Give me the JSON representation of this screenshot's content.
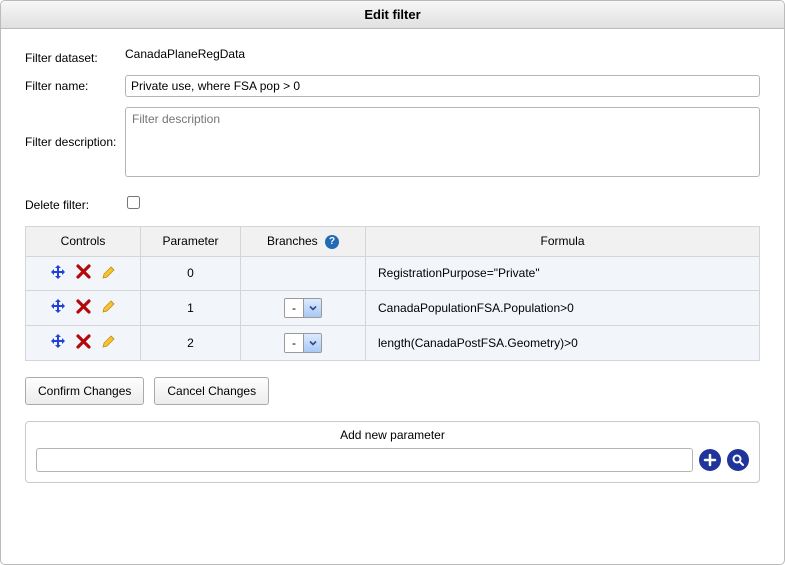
{
  "window": {
    "title": "Edit filter"
  },
  "labels": {
    "filter_dataset": "Filter dataset:",
    "filter_name": "Filter name:",
    "filter_description": "Filter description:",
    "delete_filter": "Delete filter:"
  },
  "values": {
    "filter_dataset": "CanadaPlaneRegData",
    "filter_name": "Private use, where FSA pop > 0",
    "filter_description_placeholder": "Filter description",
    "filter_description": "",
    "delete_filter_checked": false
  },
  "table": {
    "headers": {
      "controls": "Controls",
      "parameter": "Parameter",
      "branches": "Branches",
      "formula": "Formula"
    },
    "rows": [
      {
        "parameter": "0",
        "branches_value": "",
        "has_branch_select": false,
        "formula": "RegistrationPurpose=\"Private\""
      },
      {
        "parameter": "1",
        "branches_value": "-",
        "has_branch_select": true,
        "formula": "CanadaPopulationFSA.Population>0"
      },
      {
        "parameter": "2",
        "branches_value": "-",
        "has_branch_select": true,
        "formula": "length(CanadaPostFSA.Geometry)>0"
      }
    ]
  },
  "buttons": {
    "confirm": "Confirm Changes",
    "cancel": "Cancel Changes"
  },
  "add_parameter": {
    "title": "Add new parameter",
    "value": ""
  },
  "icons": {
    "help": "?",
    "move": "move-icon",
    "delete": "delete-icon",
    "edit": "edit-icon",
    "add": "add-icon",
    "search": "search-icon",
    "dropdown": "chevron-down-icon"
  },
  "colors": {
    "header_bg_top": "#f7f7f7",
    "header_bg_bottom": "#e0e0e0",
    "table_row_bg": "#f2f6fb",
    "table_header_bg": "#f1f1f1",
    "border": "#c9c9c9",
    "icon_blue": "#2043d6",
    "icon_red": "#b50909",
    "icon_yellow": "#f7c22b",
    "circle_button": "#20349b",
    "help_bg": "#216ab5",
    "dropdown_top": "#dceafe",
    "dropdown_bottom": "#a8c8f5"
  }
}
